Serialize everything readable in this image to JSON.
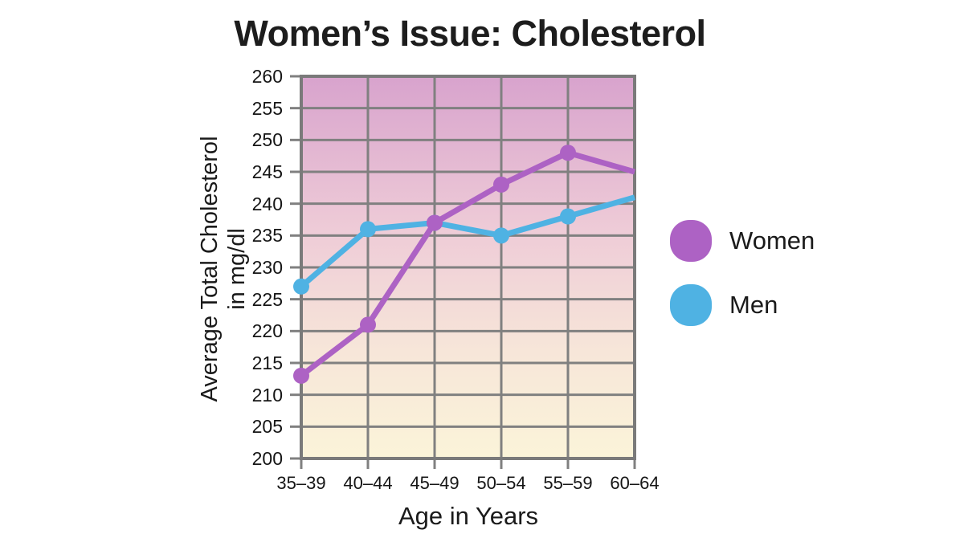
{
  "title": "Women’s Issue: Cholesterol",
  "chart_data": {
    "type": "line",
    "title": "Women’s Issue: Cholesterol",
    "xlabel": "Age in Years",
    "ylabel": "Average Total Cholesterol in mg/dl",
    "ylabel_lines": [
      "Average Total Cholesterol",
      "in mg/dl"
    ],
    "categories": [
      "35–39",
      "40–44",
      "45–49",
      "50–54",
      "55–59",
      "60–64"
    ],
    "series": [
      {
        "name": "Women",
        "color": "#ad62c4",
        "values": [
          213,
          221,
          237,
          243,
          248,
          245
        ]
      },
      {
        "name": "Men",
        "color": "#4fb2e3",
        "values": [
          227,
          236,
          237,
          235,
          238,
          241
        ]
      }
    ],
    "ylim": [
      200,
      260
    ],
    "yticks": [
      260,
      255,
      250,
      245,
      240,
      235,
      230,
      225,
      220,
      215,
      210,
      205,
      200
    ],
    "grid": true,
    "legend_position": "right",
    "marker_style": "circle",
    "plot_gradient": [
      {
        "offset": 0,
        "color": "#d8a3cd"
      },
      {
        "offset": 0.4,
        "color": "#eecbd7"
      },
      {
        "offset": 0.72,
        "color": "#f7e6d9"
      },
      {
        "offset": 1,
        "color": "#fbf4d9"
      }
    ],
    "colors": {
      "grid": "#808080",
      "border": "#7a7a7a",
      "text": "#1a1a1a"
    }
  }
}
